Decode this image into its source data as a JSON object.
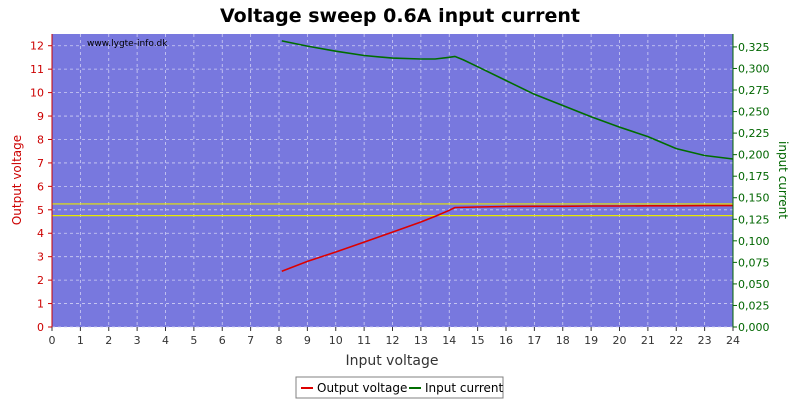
{
  "chart_data": {
    "type": "line",
    "title": "Voltage sweep 0.6A input current",
    "xlabel": "Input voltage",
    "ylabel": "Output voltage",
    "y2label": "input current",
    "watermark": "www.lygte-info.dk",
    "xlim": [
      0,
      24
    ],
    "ylim": [
      0,
      12.5
    ],
    "y2lim": [
      0,
      0.34
    ],
    "x_ticks": [
      0,
      1,
      2,
      3,
      4,
      5,
      6,
      7,
      8,
      9,
      10,
      11,
      12,
      13,
      14,
      15,
      16,
      17,
      18,
      19,
      20,
      21,
      22,
      23,
      24
    ],
    "y_ticks": [
      0,
      1,
      2,
      3,
      4,
      5,
      6,
      7,
      8,
      9,
      10,
      11,
      12
    ],
    "y2_ticks": [
      "0,000",
      "0,025",
      "0,050",
      "0,075",
      "0,100",
      "0,125",
      "0,150",
      "0,175",
      "0,200",
      "0,225",
      "0,250",
      "0,275",
      "0,300",
      "0,325"
    ],
    "y2_tick_values": [
      0,
      0.025,
      0.05,
      0.075,
      0.1,
      0.125,
      0.15,
      0.175,
      0.2,
      0.225,
      0.25,
      0.275,
      0.3,
      0.325
    ],
    "reference_lines": [
      5.25,
      4.75
    ],
    "grid": true,
    "legend_position": "bottom-center",
    "colors": {
      "plot_bg": "#7878de",
      "output_voltage": "#dd0000",
      "input_current": "#006d00",
      "reference": "#e8e800",
      "left_axis": "#cc0000",
      "right_axis": "#006600"
    },
    "series": [
      {
        "name": "Output voltage",
        "axis": "left",
        "x": [
          8.1,
          9,
          10,
          11,
          12,
          13,
          13.5,
          14,
          14.2,
          15,
          16,
          17,
          18,
          19,
          20,
          21,
          22,
          23,
          24
        ],
        "y": [
          2.38,
          2.8,
          3.2,
          3.62,
          4.05,
          4.48,
          4.72,
          4.98,
          5.1,
          5.12,
          5.14,
          5.15,
          5.15,
          5.16,
          5.16,
          5.17,
          5.17,
          5.18,
          5.18
        ]
      },
      {
        "name": "Input current",
        "axis": "right",
        "x": [
          8.1,
          9,
          10,
          11,
          12,
          13,
          13.5,
          14,
          14.2,
          14.5,
          15,
          16,
          17,
          18,
          19,
          20,
          21,
          22,
          23,
          24
        ],
        "y": [
          0.332,
          0.326,
          0.32,
          0.315,
          0.312,
          0.311,
          0.311,
          0.313,
          0.314,
          0.31,
          0.302,
          0.286,
          0.27,
          0.257,
          0.244,
          0.232,
          0.221,
          0.207,
          0.199,
          0.195
        ]
      }
    ]
  }
}
